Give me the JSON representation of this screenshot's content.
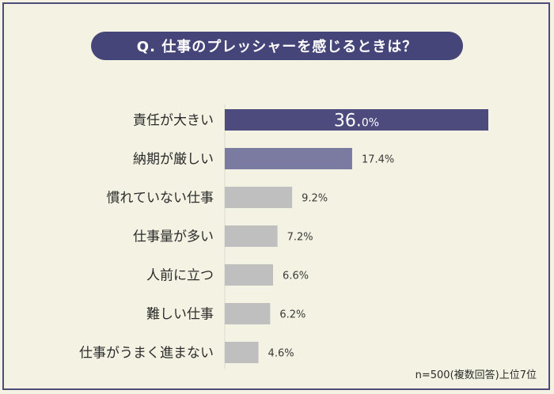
{
  "chart_data": {
    "type": "bar",
    "orientation": "horizontal",
    "title": "Q. 仕事のプレッシャーを感じるときは？",
    "categories": [
      "責任が大きい",
      "納期が厳しい",
      "慣れていない仕事",
      "仕事量が多い",
      "人前に立つ",
      "難しい仕事",
      "仕事がうまく進まない"
    ],
    "values": [
      36.0,
      17.4,
      9.2,
      7.2,
      6.6,
      6.2,
      4.6
    ],
    "value_labels": [
      "36.0%",
      "17.4%",
      "9.2%",
      "7.2%",
      "6.6%",
      "6.2%",
      "4.6%"
    ],
    "top_label_number": "36.",
    "top_label_suffix": "0%",
    "unit": "%",
    "xlim": [
      0,
      36.0
    ],
    "note": "n=500(複数回答)上位7位",
    "colors": [
      "#4d4b7e",
      "#7b7aa1",
      "#bfbfbf",
      "#bfbfbf",
      "#bfbfbf",
      "#bfbfbf",
      "#bfbfbf"
    ]
  }
}
